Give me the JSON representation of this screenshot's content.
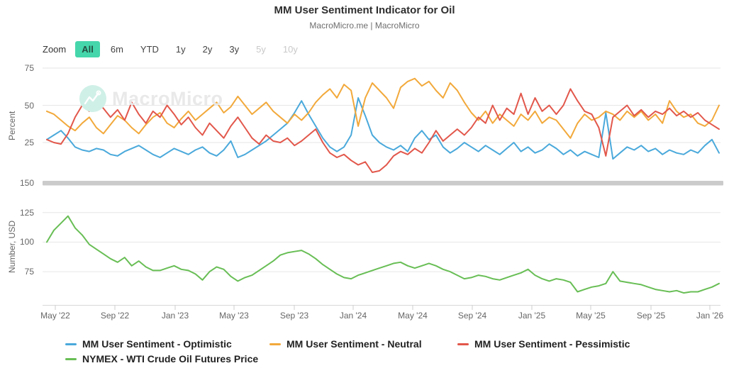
{
  "header": {
    "title": "MM User Sentiment Indicator for Oil",
    "subtitle": "MacroMicro.me | MacroMicro"
  },
  "toolbar": {
    "zoom_label": "Zoom",
    "buttons": [
      {
        "label": "All",
        "state": "active"
      },
      {
        "label": "6m",
        "state": "normal"
      },
      {
        "label": "YTD",
        "state": "normal"
      },
      {
        "label": "1y",
        "state": "normal"
      },
      {
        "label": "2y",
        "state": "normal"
      },
      {
        "label": "3y",
        "state": "normal"
      },
      {
        "label": "5y",
        "state": "disabled"
      },
      {
        "label": "10y",
        "state": "disabled"
      }
    ]
  },
  "watermark": {
    "text": "MacroMicro",
    "icon": "macromicro-logo-icon",
    "circle_color": "#cff0e7",
    "text_color": "#e9e9e9"
  },
  "colors": {
    "optimistic": "#4aa9db",
    "neutral": "#f2a93b",
    "pessimistic": "#e2574b",
    "wti": "#68be55",
    "grid": "#e6e6e6",
    "divider": "#cbcbcb",
    "axis_text": "#666666",
    "active_button": "#45d6ab"
  },
  "chart_data": [
    {
      "type": "line",
      "panel": "sentiment",
      "ylabel": "Percent",
      "ylim": [
        0,
        75
      ],
      "yticks": [
        25,
        50,
        75
      ],
      "grid": true,
      "x_range": "May 2022 - Feb 2026",
      "sampling": "approx biweekly, 96 points",
      "x_tick_labels": [
        "May '22",
        "Sep '22",
        "Jan '23",
        "May '23",
        "Sep '23",
        "Jan '24",
        "May '24",
        "Sep '24",
        "Jan '25",
        "May '25",
        "Sep '25",
        "Jan '26"
      ],
      "series": [
        {
          "name": "MM User Sentiment - Optimistic",
          "color": "#4aa9db",
          "values": [
            27,
            30,
            33,
            28,
            22,
            20,
            19,
            21,
            20,
            17,
            16,
            19,
            21,
            23,
            20,
            17,
            15,
            18,
            21,
            19,
            17,
            20,
            22,
            18,
            16,
            20,
            26,
            15,
            17,
            20,
            23,
            26,
            30,
            34,
            38,
            45,
            53,
            44,
            36,
            28,
            22,
            19,
            22,
            30,
            55,
            43,
            30,
            25,
            22,
            20,
            23,
            19,
            28,
            33,
            27,
            30,
            22,
            18,
            21,
            25,
            22,
            19,
            23,
            20,
            17,
            21,
            25,
            19,
            22,
            18,
            20,
            24,
            21,
            17,
            20,
            16,
            19,
            17,
            15,
            45,
            14,
            18,
            22,
            20,
            23,
            19,
            21,
            17,
            20,
            18,
            17,
            20,
            18,
            23,
            27,
            18
          ]
        },
        {
          "name": "MM User Sentiment - Neutral",
          "color": "#f2a93b",
          "values": [
            46,
            44,
            40,
            36,
            33,
            38,
            42,
            35,
            31,
            37,
            43,
            40,
            35,
            31,
            37,
            42,
            45,
            38,
            35,
            41,
            46,
            40,
            44,
            48,
            52,
            45,
            49,
            56,
            50,
            44,
            48,
            52,
            46,
            42,
            38,
            44,
            40,
            45,
            52,
            57,
            61,
            55,
            64,
            60,
            36,
            55,
            65,
            60,
            55,
            48,
            62,
            66,
            68,
            63,
            66,
            60,
            55,
            65,
            60,
            52,
            45,
            40,
            46,
            38,
            44,
            40,
            36,
            44,
            40,
            46,
            38,
            42,
            40,
            34,
            28,
            38,
            44,
            40,
            42,
            46,
            44,
            40,
            46,
            42,
            46,
            40,
            44,
            38,
            53,
            46,
            42,
            44,
            38,
            36,
            40,
            50
          ]
        },
        {
          "name": "MM User Sentiment - Pessimistic",
          "color": "#e2574b",
          "values": [
            27,
            25,
            24,
            31,
            42,
            50,
            46,
            52,
            48,
            42,
            47,
            40,
            52,
            44,
            38,
            46,
            42,
            50,
            44,
            37,
            42,
            35,
            30,
            38,
            33,
            28,
            36,
            42,
            35,
            28,
            24,
            30,
            26,
            25,
            28,
            23,
            26,
            30,
            34,
            25,
            18,
            15,
            17,
            13,
            10,
            12,
            5,
            6,
            10,
            16,
            19,
            17,
            21,
            18,
            25,
            33,
            26,
            30,
            34,
            30,
            35,
            42,
            38,
            50,
            40,
            48,
            44,
            58,
            44,
            55,
            46,
            50,
            44,
            50,
            61,
            53,
            46,
            44,
            35,
            16,
            42,
            46,
            50,
            43,
            47,
            42,
            46,
            44,
            48,
            43,
            46,
            42,
            45,
            40,
            37,
            34
          ]
        }
      ]
    },
    {
      "type": "line",
      "panel": "price",
      "ylabel": "Number, USD",
      "ylim": [
        50,
        150
      ],
      "yticks": [
        75,
        100,
        125,
        150
      ],
      "grid": true,
      "series": [
        {
          "name": "NYMEX - WTI Crude Oil Futures Price",
          "color": "#68be55",
          "values": [
            100,
            110,
            116,
            122,
            112,
            106,
            98,
            94,
            90,
            86,
            83,
            87,
            80,
            84,
            79,
            76,
            76,
            78,
            80,
            77,
            76,
            73,
            68,
            75,
            79,
            77,
            71,
            67,
            70,
            72,
            76,
            80,
            84,
            89,
            91,
            92,
            93,
            90,
            86,
            81,
            77,
            73,
            70,
            69,
            72,
            74,
            76,
            78,
            80,
            82,
            83,
            80,
            78,
            80,
            82,
            80,
            77,
            75,
            72,
            69,
            70,
            72,
            71,
            69,
            68,
            70,
            72,
            74,
            77,
            72,
            69,
            67,
            69,
            68,
            66,
            58,
            60,
            62,
            63,
            65,
            75,
            67,
            66,
            65,
            64,
            62,
            60,
            59,
            58,
            59,
            57,
            58,
            58,
            60,
            62,
            65
          ]
        }
      ]
    }
  ],
  "legend": {
    "items": [
      {
        "label": "MM User Sentiment - Optimistic",
        "color": "#4aa9db"
      },
      {
        "label": "MM User Sentiment - Neutral",
        "color": "#f2a93b"
      },
      {
        "label": "MM User Sentiment - Pessimistic",
        "color": "#e2574b"
      },
      {
        "label": "NYMEX - WTI Crude Oil Futures Price",
        "color": "#68be55"
      }
    ]
  }
}
